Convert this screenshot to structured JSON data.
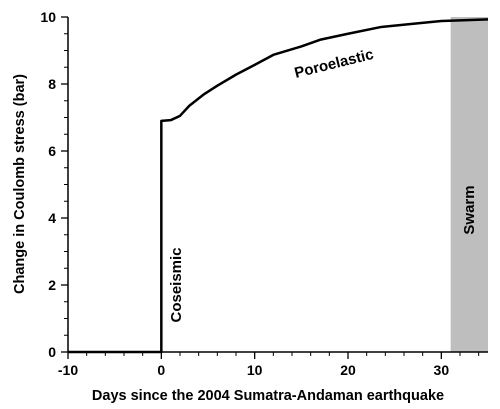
{
  "chart_data": {
    "type": "line",
    "xlabel": "Days since the 2004 Sumatra-Andaman earthquake",
    "ylabel": "Change in Coulomb stress (bar)",
    "xlim": [
      -10,
      35
    ],
    "ylim": [
      0,
      10
    ],
    "x_ticks": [
      -10,
      0,
      10,
      20,
      30
    ],
    "y_ticks": [
      0,
      2,
      4,
      6,
      8,
      10
    ],
    "grid": false,
    "series": [
      {
        "x": [
          -10,
          0,
          0,
          1,
          2,
          3,
          4.5,
          6,
          8,
          10,
          12,
          15,
          17,
          20,
          23.5,
          27,
          30,
          32,
          35
        ],
        "y": [
          0,
          0,
          6.9,
          6.92,
          7.05,
          7.35,
          7.68,
          7.95,
          8.28,
          8.57,
          8.87,
          9.12,
          9.32,
          9.5,
          9.7,
          9.8,
          9.88,
          9.9,
          9.93
        ]
      }
    ],
    "shaded_region": {
      "x0": 31,
      "x1": 35,
      "label": "Swarm",
      "color": "#bebebe"
    },
    "annotations": [
      {
        "text": "Poroelastic",
        "x": 18.5,
        "y": 8.6,
        "rotation": -14
      },
      {
        "text": "Coseismic",
        "x": 1.6,
        "y": 2.0,
        "rotation": -90
      }
    ]
  }
}
